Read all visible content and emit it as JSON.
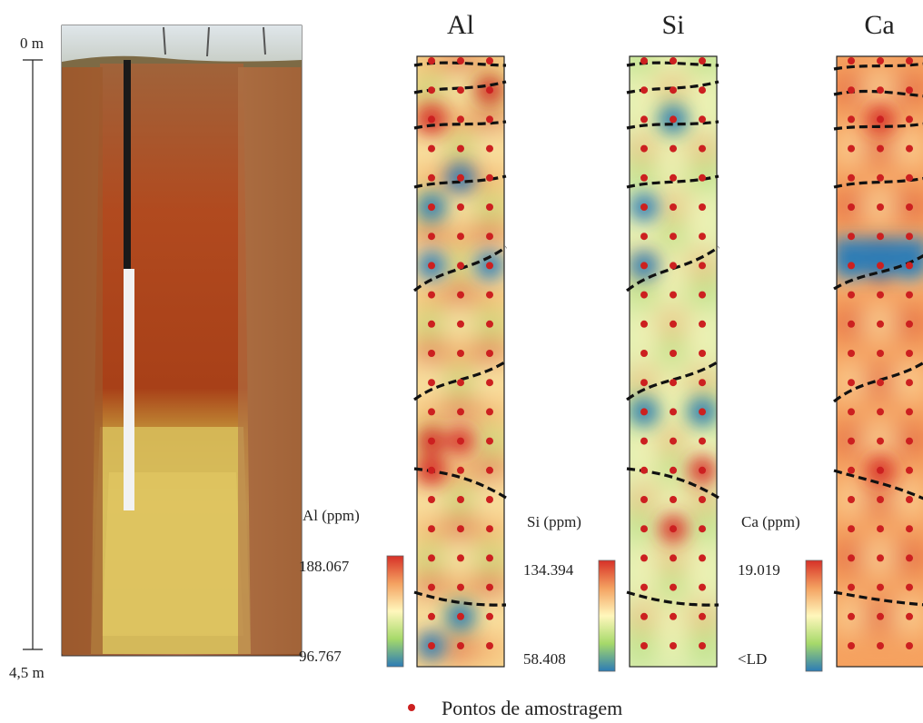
{
  "depth_scale": {
    "top_label": "0 m",
    "bottom_label": "4,5 m"
  },
  "legend": {
    "sample_points_label": "Pontos de amostragem",
    "marker_color": "#cc2020"
  },
  "colors": {
    "high": "#d73027",
    "mid_high": "#f4a261",
    "mid": "#fff7bc",
    "mid_low": "#a6d96a",
    "low": "#2c7bb6"
  },
  "chart_data": [
    {
      "type": "heatmap",
      "title": "Al",
      "colorbar_label": "Al (ppm)",
      "max_label": "188.067",
      "min_label": "96.767",
      "range": [
        96.767,
        188.067
      ],
      "grid": {
        "columns": 3,
        "rows": 21
      },
      "hotspots": [
        {
          "col": 0,
          "row": 13,
          "level": "high"
        },
        {
          "col": 0,
          "row": 14,
          "level": "high"
        },
        {
          "col": 1,
          "row": 13,
          "level": "high"
        },
        {
          "col": 0,
          "row": 2,
          "level": "high"
        },
        {
          "col": 2,
          "row": 1,
          "level": "high"
        },
        {
          "col": 0,
          "row": 20,
          "level": "low"
        },
        {
          "col": 0,
          "row": 7,
          "level": "low"
        },
        {
          "col": 0,
          "row": 5,
          "level": "low"
        },
        {
          "col": 2,
          "row": 7,
          "level": "low"
        },
        {
          "col": 1,
          "row": 4,
          "level": "low"
        },
        {
          "col": 1,
          "row": 19,
          "level": "low"
        }
      ]
    },
    {
      "type": "heatmap",
      "title": "Si",
      "colorbar_label": "Si (ppm)",
      "max_label": "134.394",
      "min_label": "58.408",
      "range": [
        58.408,
        134.394
      ],
      "grid": {
        "columns": 3,
        "rows": 21
      },
      "hotspots": [
        {
          "col": 1,
          "row": 16,
          "level": "high"
        },
        {
          "col": 2,
          "row": 14,
          "level": "high"
        },
        {
          "col": 0,
          "row": 7,
          "level": "low"
        },
        {
          "col": 0,
          "row": 12,
          "level": "low"
        },
        {
          "col": 2,
          "row": 12,
          "level": "low"
        },
        {
          "col": 1,
          "row": 2,
          "level": "low"
        },
        {
          "col": 0,
          "row": 5,
          "level": "low"
        }
      ]
    },
    {
      "type": "heatmap",
      "title": "Ca",
      "colorbar_label": "Ca (ppm)",
      "max_label": "19.019",
      "min_label": "<LD",
      "range": [
        0,
        19.019
      ],
      "grid": {
        "columns": 3,
        "rows": 21
      },
      "hotspots": [
        {
          "col": 0,
          "row": 7,
          "level": "low"
        },
        {
          "col": 1,
          "row": 7,
          "level": "low"
        },
        {
          "col": 2,
          "row": 7,
          "level": "low"
        },
        {
          "col": 1,
          "row": 2,
          "level": "high"
        },
        {
          "col": 1,
          "row": 14,
          "level": "high"
        }
      ]
    }
  ]
}
